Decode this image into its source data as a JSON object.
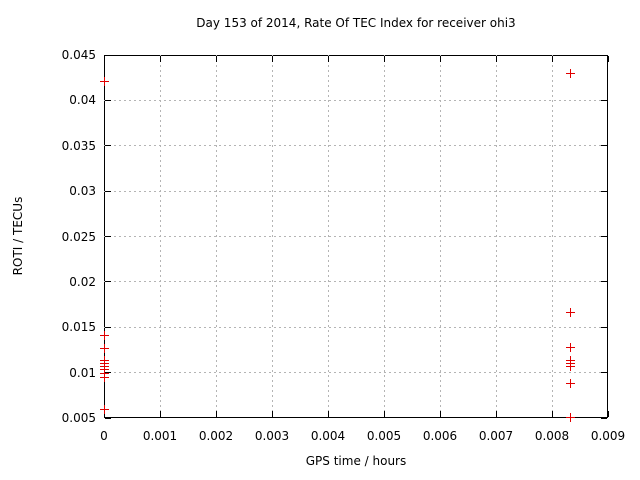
{
  "chart_data": {
    "type": "scatter",
    "title": "Day 153 of 2014, Rate Of TEC Index for receiver ohi3",
    "xlabel": "GPS time / hours",
    "ylabel": "ROTI / TECUs",
    "xlim": [
      0,
      0.009
    ],
    "ylim": [
      0.005,
      0.045
    ],
    "x_tick_values": [
      0,
      0.001,
      0.002,
      0.003,
      0.004,
      0.005,
      0.006,
      0.007,
      0.008,
      0.009
    ],
    "x_tick_labels": [
      "0",
      "0.001",
      "0.002",
      "0.003",
      "0.004",
      "0.005",
      "0.006",
      "0.007",
      "0.008",
      "0.009"
    ],
    "y_tick_values": [
      0.005,
      0.01,
      0.015,
      0.02,
      0.025,
      0.03,
      0.035,
      0.04,
      0.045
    ],
    "y_tick_labels": [
      "0.005",
      "0.01",
      "0.015",
      "0.02",
      "0.025",
      "0.03",
      "0.035",
      "0.04",
      "0.045"
    ],
    "grid": true,
    "grid_color": "#b4b4b4",
    "legend": "none",
    "marker": "plus",
    "marker_color": "#e00000",
    "points": [
      [
        0,
        0.0421
      ],
      [
        0,
        0.0141
      ],
      [
        0,
        0.0127
      ],
      [
        0,
        0.0113
      ],
      [
        0,
        0.011
      ],
      [
        0,
        0.0107
      ],
      [
        0,
        0.0103
      ],
      [
        0,
        0.0099
      ],
      [
        0,
        0.0095
      ],
      [
        0,
        0.0059
      ],
      [
        0.008333,
        0.043
      ],
      [
        0.008333,
        0.0166
      ],
      [
        0.008333,
        0.0128
      ],
      [
        0.008333,
        0.0113
      ],
      [
        0.008333,
        0.011
      ],
      [
        0.008333,
        0.0107
      ],
      [
        0.008333,
        0.0088
      ],
      [
        0.008333,
        0.0051
      ]
    ]
  }
}
